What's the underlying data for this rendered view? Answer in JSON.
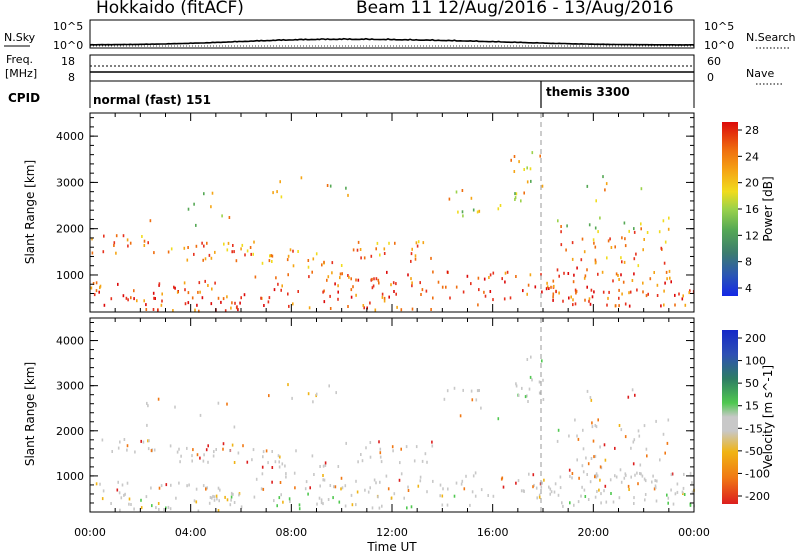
{
  "header": {
    "title": "Hokkaido (fitACF)",
    "beam_info": "Beam 11  12/Aug/2016 - 13/Aug/2016"
  },
  "top_panels": {
    "nsky_label": "N.Sky",
    "nsearch_label": "N.Search",
    "noise_ticks_left": [
      "10^5",
      "10^0"
    ],
    "noise_ticks_right": [
      "10^5",
      "10^0"
    ],
    "freq_label_line1": "Freq.",
    "freq_label_line2": "[MHz]",
    "freq_ticks": [
      "18",
      "8"
    ],
    "nave_label": "Nave",
    "nave_ticks": [
      "60",
      "0"
    ],
    "cpid_label": "CPID",
    "cpid_segments": [
      "normal (fast) 151",
      "themis 3300"
    ]
  },
  "chart_data": [
    {
      "type": "heatmap",
      "name": "power",
      "xlabel": "",
      "ylabel": "Slant Range [km]",
      "x_ticks": [
        "00:00",
        "04:00",
        "08:00",
        "12:00",
        "16:00",
        "20:00",
        "00:00"
      ],
      "y_ticks": [
        1000,
        2000,
        3000,
        4000
      ],
      "ylim": [
        200,
        4500
      ],
      "colorbar_label": "Power [dB]",
      "colorbar_ticks": [
        4,
        8,
        12,
        16,
        20,
        24,
        28
      ],
      "colors": [
        "#1428e6",
        "#2a56b4",
        "#3d7d6e",
        "#55a855",
        "#9bd24a",
        "#f0dc1e",
        "#f5a514",
        "#ef6e0f",
        "#e6321e",
        "#dc0a0a"
      ]
    },
    {
      "type": "heatmap",
      "name": "velocity",
      "xlabel": "Time UT",
      "ylabel": "Slant Range [km]",
      "x_ticks": [
        "00:00",
        "04:00",
        "08:00",
        "12:00",
        "16:00",
        "20:00",
        "00:00"
      ],
      "y_ticks": [
        1000,
        2000,
        3000,
        4000
      ],
      "ylim": [
        200,
        4500
      ],
      "colorbar_label": "Velocity [m s^-1]",
      "colorbar_ticks": [
        200,
        100,
        50,
        15,
        -15,
        -50,
        -100,
        -200
      ],
      "colors": [
        "#1428c8",
        "#2d50b4",
        "#2d7d64",
        "#50c850",
        "#c8c8c8",
        "#f0b414",
        "#f07814",
        "#dc1e1e"
      ]
    }
  ]
}
